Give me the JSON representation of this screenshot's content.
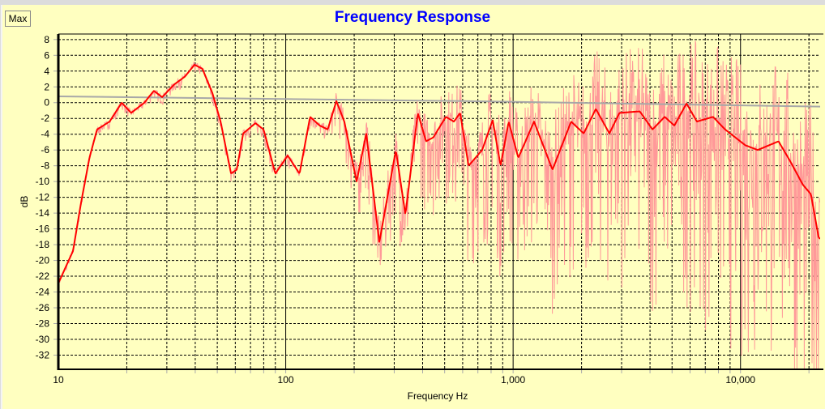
{
  "window": {
    "max_button": "Max"
  },
  "chart_data": {
    "type": "line",
    "title": "Frequency Response",
    "xlabel": "Frequency Hz",
    "ylabel": "dB",
    "xscale": "log",
    "xlim": [
      10,
      22400
    ],
    "ylim": [
      -33.8,
      8.7
    ],
    "grid": true,
    "x_ticks": [
      {
        "v": 10,
        "label": "10"
      },
      {
        "v": 100,
        "label": "100"
      },
      {
        "v": 1000,
        "label": "1,000"
      },
      {
        "v": 10000,
        "label": "10,000"
      }
    ],
    "y_ticks": [
      8,
      6,
      4,
      2,
      0,
      -2,
      -4,
      -6,
      -8,
      -10,
      -12,
      -14,
      -16,
      -18,
      -20,
      -22,
      -24,
      -26,
      -28,
      -30,
      -32
    ],
    "colors": {
      "smoothed": "#ff0000",
      "raw": "#ff9999",
      "reference": "#a8a8a8",
      "title": "#0000ff",
      "background": "#ffffc0"
    },
    "series": [
      {
        "name": "smoothed",
        "points": [
          [
            10,
            -22.9
          ],
          [
            11.6,
            -18.8
          ],
          [
            12.6,
            -12.6
          ],
          [
            13.7,
            -7
          ],
          [
            14.8,
            -3.4
          ],
          [
            16.8,
            -2.4
          ],
          [
            19,
            0
          ],
          [
            20.9,
            -1.3
          ],
          [
            23.9,
            0
          ],
          [
            26.3,
            1.5
          ],
          [
            28.6,
            0.7
          ],
          [
            32.3,
            2.3
          ],
          [
            36,
            3.3
          ],
          [
            39.7,
            4.8
          ],
          [
            43,
            4.3
          ],
          [
            47.6,
            1.2
          ],
          [
            51.7,
            -2.4
          ],
          [
            57.5,
            -9
          ],
          [
            60.9,
            -8.5
          ],
          [
            65,
            -3.9
          ],
          [
            73.6,
            -2.6
          ],
          [
            79.9,
            -3.4
          ],
          [
            90,
            -9
          ],
          [
            102,
            -6.7
          ],
          [
            115,
            -9
          ],
          [
            128,
            -1.8
          ],
          [
            141,
            -2.9
          ],
          [
            153,
            -3.4
          ],
          [
            167,
            0.2
          ],
          [
            181,
            -2.4
          ],
          [
            205,
            -10
          ],
          [
            226,
            -3.9
          ],
          [
            258,
            -17.7
          ],
          [
            305,
            -6
          ],
          [
            336,
            -14.2
          ],
          [
            381,
            -1.3
          ],
          [
            414,
            -4.9
          ],
          [
            446,
            -4.4
          ],
          [
            506,
            -1.8
          ],
          [
            549,
            -2.4
          ],
          [
            585,
            -1.3
          ],
          [
            637,
            -8
          ],
          [
            731,
            -6
          ],
          [
            813,
            -2.2
          ],
          [
            881,
            -8
          ],
          [
            956,
            -2.4
          ],
          [
            1054,
            -7
          ],
          [
            1236,
            -2.4
          ],
          [
            1490,
            -8.5
          ],
          [
            1799,
            -2.4
          ],
          [
            2044,
            -3.9
          ],
          [
            2311,
            -0.8
          ],
          [
            2651,
            -3.9
          ],
          [
            2935,
            -1.3
          ],
          [
            3606,
            -1.1
          ],
          [
            4100,
            -3.4
          ],
          [
            4640,
            -1.8
          ],
          [
            5120,
            -2.9
          ],
          [
            5790,
            -0.1
          ],
          [
            6430,
            -2.4
          ],
          [
            7570,
            -1.8
          ],
          [
            8560,
            -3.4
          ],
          [
            10500,
            -5.4
          ],
          [
            11900,
            -6
          ],
          [
            14700,
            -4.9
          ],
          [
            16600,
            -7.5
          ],
          [
            18800,
            -10.4
          ],
          [
            20400,
            -11.6
          ],
          [
            22100,
            -17.2
          ]
        ]
      },
      {
        "name": "reference",
        "points": [
          [
            10,
            0.8
          ],
          [
            600,
            0.2
          ],
          [
            22400,
            -0.5
          ]
        ]
      },
      {
        "name": "raw",
        "spread_db": [
          [
            10,
            0.5
          ],
          [
            150,
            1
          ],
          [
            200,
            4
          ],
          [
            400,
            6
          ],
          [
            1000,
            10
          ],
          [
            3000,
            14
          ],
          [
            10000,
            18
          ],
          [
            22400,
            20
          ]
        ]
      }
    ]
  }
}
